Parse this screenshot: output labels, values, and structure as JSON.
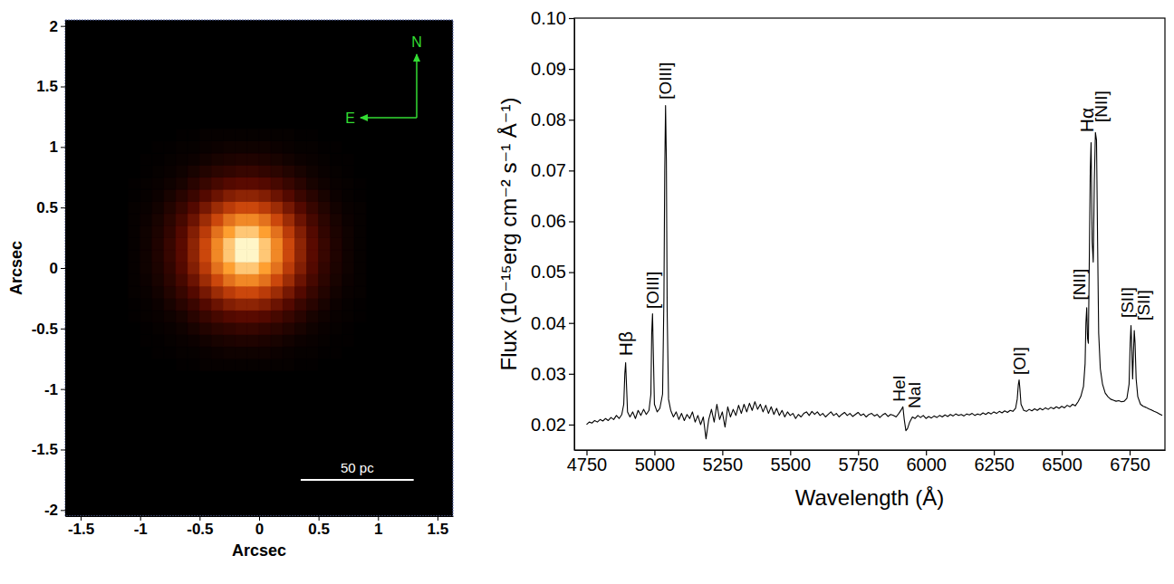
{
  "chart_data": [
    {
      "type": "heatmap",
      "xlabel": "Arcsec",
      "ylabel": "Arcsec",
      "xlim": [
        -1.63,
        1.63
      ],
      "ylim": [
        -2.05,
        2.05
      ],
      "xticks": [
        -1.5,
        -1,
        -0.5,
        0,
        0.5,
        1,
        1.5
      ],
      "yticks": [
        -2,
        -1.5,
        -1,
        -0.5,
        0,
        0.5,
        1,
        1.5,
        2
      ],
      "x": [
        -1.05,
        -0.95,
        -0.85,
        -0.75,
        -0.65,
        -0.55,
        -0.45,
        -0.35,
        -0.25,
        -0.15,
        -0.05,
        0.05,
        0.15,
        0.25,
        0.35,
        0.45,
        0.55,
        0.65,
        0.75,
        0.85
      ],
      "y": [
        -0.8,
        -0.7,
        -0.6,
        -0.5,
        -0.4,
        -0.3,
        -0.2,
        -0.1,
        0,
        0.1,
        0.2,
        0.3,
        0.4,
        0.5,
        0.6,
        0.7,
        0.8,
        0.9,
        1,
        1.1
      ],
      "z": [
        [
          0,
          0,
          0,
          0,
          1,
          1,
          2,
          2,
          2,
          2,
          2,
          2,
          2,
          2,
          1,
          1,
          0,
          0,
          0,
          0
        ],
        [
          0,
          0,
          1,
          1,
          2,
          2,
          3,
          4,
          5,
          5,
          5,
          5,
          4,
          3,
          2,
          2,
          1,
          1,
          0,
          0
        ],
        [
          0,
          1,
          1,
          2,
          3,
          4,
          6,
          8,
          9,
          10,
          10,
          9,
          8,
          6,
          4,
          3,
          2,
          1,
          1,
          0
        ],
        [
          0,
          1,
          2,
          3,
          5,
          8,
          11,
          14,
          16,
          18,
          18,
          16,
          14,
          11,
          8,
          5,
          3,
          2,
          1,
          0
        ],
        [
          1,
          2,
          3,
          5,
          8,
          13,
          18,
          23,
          27,
          29,
          29,
          27,
          23,
          18,
          13,
          8,
          5,
          3,
          2,
          1
        ],
        [
          1,
          2,
          4,
          8,
          13,
          19,
          27,
          34,
          40,
          43,
          43,
          40,
          34,
          27,
          19,
          13,
          8,
          4,
          2,
          1
        ],
        [
          2,
          3,
          6,
          11,
          18,
          27,
          37,
          47,
          55,
          60,
          60,
          55,
          47,
          37,
          27,
          18,
          11,
          6,
          3,
          2
        ],
        [
          2,
          4,
          8,
          14,
          23,
          34,
          47,
          60,
          71,
          77,
          77,
          71,
          60,
          47,
          34,
          23,
          14,
          8,
          4,
          2
        ],
        [
          2,
          5,
          9,
          16,
          27,
          40,
          55,
          71,
          83,
          90,
          90,
          83,
          71,
          55,
          40,
          27,
          16,
          9,
          5,
          2
        ],
        [
          2,
          5,
          10,
          18,
          29,
          43,
          60,
          77,
          90,
          98,
          98,
          90,
          77,
          60,
          43,
          29,
          18,
          10,
          5,
          2
        ],
        [
          2,
          5,
          10,
          18,
          29,
          43,
          60,
          77,
          90,
          98,
          98,
          90,
          77,
          60,
          43,
          29,
          18,
          10,
          5,
          2
        ],
        [
          2,
          5,
          9,
          16,
          27,
          40,
          55,
          71,
          83,
          90,
          90,
          83,
          71,
          55,
          40,
          27,
          16,
          9,
          5,
          2
        ],
        [
          2,
          4,
          8,
          14,
          23,
          34,
          47,
          60,
          71,
          77,
          77,
          71,
          60,
          47,
          34,
          23,
          14,
          8,
          4,
          2
        ],
        [
          2,
          3,
          6,
          11,
          18,
          27,
          37,
          47,
          55,
          60,
          60,
          55,
          47,
          37,
          27,
          18,
          11,
          6,
          3,
          2
        ],
        [
          1,
          2,
          4,
          8,
          13,
          19,
          27,
          34,
          40,
          43,
          43,
          40,
          34,
          27,
          19,
          13,
          8,
          4,
          2,
          1
        ],
        [
          1,
          2,
          3,
          5,
          8,
          13,
          18,
          23,
          27,
          29,
          29,
          27,
          23,
          18,
          13,
          8,
          5,
          3,
          2,
          1
        ],
        [
          0,
          1,
          2,
          3,
          5,
          8,
          11,
          14,
          16,
          18,
          18,
          16,
          14,
          11,
          8,
          5,
          3,
          2,
          1,
          0
        ],
        [
          0,
          1,
          1,
          2,
          3,
          4,
          6,
          8,
          9,
          10,
          10,
          9,
          8,
          6,
          4,
          3,
          2,
          1,
          1,
          0
        ],
        [
          0,
          0,
          1,
          1,
          2,
          2,
          3,
          4,
          5,
          5,
          5,
          5,
          4,
          3,
          2,
          2,
          1,
          1,
          0,
          0
        ],
        [
          0,
          0,
          0,
          0,
          1,
          1,
          2,
          2,
          2,
          2,
          2,
          2,
          2,
          2,
          1,
          1,
          0,
          0,
          0,
          0
        ]
      ],
      "annotations": [
        {
          "text": "N"
        },
        {
          "text": "E"
        }
      ],
      "scale_bar": {
        "text": "50 pc",
        "x": [
          0.35,
          1.3
        ],
        "y": -1.75
      }
    },
    {
      "type": "line",
      "xlabel": "Wavelength (Å)",
      "ylabel": "Flux (10⁻¹⁵erg cm⁻² s⁻¹ Å⁻¹)",
      "xlim": [
        4705,
        6880
      ],
      "ylim": [
        0.015,
        0.1
      ],
      "xticks": [
        4750,
        5000,
        5250,
        5500,
        5750,
        6000,
        6250,
        6500,
        6750
      ],
      "yticks": [
        0.02,
        0.03,
        0.04,
        0.05,
        0.06,
        0.07,
        0.08,
        0.09,
        {
          "value": 0.1,
          "label": "0.10"
        }
      ],
      "color": "#000000",
      "x": [
        4750,
        4760,
        4770,
        4780,
        4790,
        4800,
        4810,
        4820,
        4830,
        4840,
        4850,
        4860,
        4870,
        4880,
        4887,
        4891,
        4894,
        4897,
        4901,
        4910,
        4920,
        4930,
        4940,
        4950,
        4960,
        4970,
        4980,
        4987,
        4990,
        4993,
        4996,
        5000,
        5010,
        5020,
        5030,
        5035,
        5038,
        5041,
        5044,
        5047,
        5052,
        5060,
        5070,
        5080,
        5090,
        5100,
        5110,
        5120,
        5130,
        5140,
        5150,
        5160,
        5170,
        5180,
        5190,
        5200,
        5210,
        5220,
        5230,
        5240,
        5250,
        5260,
        5270,
        5280,
        5290,
        5300,
        5310,
        5320,
        5330,
        5340,
        5350,
        5360,
        5370,
        5380,
        5390,
        5400,
        5410,
        5420,
        5430,
        5440,
        5450,
        5460,
        5470,
        5480,
        5490,
        5500,
        5510,
        5520,
        5530,
        5540,
        5550,
        5560,
        5570,
        5580,
        5590,
        5600,
        5610,
        5620,
        5630,
        5640,
        5650,
        5660,
        5670,
        5680,
        5690,
        5700,
        5710,
        5720,
        5730,
        5740,
        5750,
        5760,
        5770,
        5780,
        5790,
        5800,
        5810,
        5820,
        5830,
        5840,
        5850,
        5860,
        5870,
        5880,
        5890,
        5900,
        5910,
        5915,
        5920,
        5926,
        5932,
        5940,
        5950,
        5960,
        5970,
        5980,
        5990,
        6000,
        6010,
        6020,
        6030,
        6040,
        6050,
        6060,
        6070,
        6080,
        6090,
        6100,
        6110,
        6120,
        6130,
        6140,
        6150,
        6160,
        6170,
        6180,
        6190,
        6200,
        6210,
        6220,
        6230,
        6240,
        6250,
        6260,
        6270,
        6280,
        6290,
        6300,
        6310,
        6320,
        6330,
        6336,
        6340,
        6343,
        6346,
        6350,
        6360,
        6370,
        6380,
        6390,
        6400,
        6410,
        6420,
        6430,
        6440,
        6450,
        6460,
        6470,
        6480,
        6490,
        6500,
        6510,
        6520,
        6530,
        6540,
        6550,
        6560,
        6570,
        6580,
        6586,
        6589,
        6592,
        6595,
        6598,
        6602,
        6605,
        6608,
        6612,
        6616,
        6620,
        6624,
        6628,
        6632,
        6636,
        6642,
        6650,
        6660,
        6670,
        6680,
        6690,
        6700,
        6710,
        6720,
        6730,
        6740,
        6748,
        6752,
        6755,
        6758,
        6761,
        6764,
        6767,
        6770,
        6774,
        6780,
        6790,
        6800,
        6810,
        6820,
        6830,
        6840,
        6850,
        6860,
        6870
      ],
      "values": [
        0.02,
        0.0205,
        0.0203,
        0.0208,
        0.0205,
        0.021,
        0.0207,
        0.0212,
        0.0208,
        0.0214,
        0.021,
        0.0218,
        0.0212,
        0.022,
        0.024,
        0.03,
        0.0322,
        0.028,
        0.0225,
        0.0215,
        0.0225,
        0.0212,
        0.0228,
        0.0218,
        0.023,
        0.022,
        0.0228,
        0.026,
        0.038,
        0.0418,
        0.034,
        0.024,
        0.0225,
        0.0232,
        0.026,
        0.045,
        0.07,
        0.0828,
        0.072,
        0.042,
        0.025,
        0.0228,
        0.0215,
        0.0225,
        0.021,
        0.0222,
        0.0208,
        0.022,
        0.0212,
        0.0225,
        0.0205,
        0.0218,
        0.02,
        0.0215,
        0.0172,
        0.021,
        0.023,
        0.0205,
        0.024,
        0.021,
        0.0225,
        0.0195,
        0.0235,
        0.0215,
        0.023,
        0.0218,
        0.0238,
        0.0222,
        0.024,
        0.0225,
        0.0242,
        0.0228,
        0.0245,
        0.023,
        0.024,
        0.0225,
        0.0238,
        0.0222,
        0.0235,
        0.022,
        0.0232,
        0.0218,
        0.0228,
        0.0215,
        0.0225,
        0.0218,
        0.0222,
        0.0212,
        0.022,
        0.0215,
        0.0222,
        0.0225,
        0.0218,
        0.0226,
        0.022,
        0.0225,
        0.0218,
        0.0222,
        0.0215,
        0.022,
        0.0225,
        0.0218,
        0.0222,
        0.0215,
        0.022,
        0.0224,
        0.0218,
        0.0222,
        0.0216,
        0.022,
        0.0224,
        0.0218,
        0.0221,
        0.0215,
        0.022,
        0.0222,
        0.0217,
        0.022,
        0.0214,
        0.0219,
        0.0222,
        0.0216,
        0.022,
        0.0218,
        0.0215,
        0.0222,
        0.023,
        0.0235,
        0.021,
        0.0188,
        0.0192,
        0.0205,
        0.0215,
        0.0212,
        0.0218,
        0.0214,
        0.0218,
        0.0212,
        0.0216,
        0.0213,
        0.0217,
        0.0214,
        0.0218,
        0.0215,
        0.0219,
        0.0216,
        0.022,
        0.0217,
        0.0221,
        0.0218,
        0.022,
        0.0217,
        0.0221,
        0.0219,
        0.0222,
        0.0218,
        0.0221,
        0.0219,
        0.0223,
        0.022,
        0.0224,
        0.0221,
        0.0225,
        0.0222,
        0.0226,
        0.0223,
        0.0227,
        0.0224,
        0.0228,
        0.0226,
        0.0232,
        0.025,
        0.0278,
        0.0288,
        0.027,
        0.024,
        0.0228,
        0.0226,
        0.023,
        0.0227,
        0.0231,
        0.0228,
        0.0232,
        0.0229,
        0.0233,
        0.023,
        0.0234,
        0.0231,
        0.0235,
        0.0232,
        0.0236,
        0.0233,
        0.0238,
        0.0235,
        0.024,
        0.0237,
        0.0245,
        0.0255,
        0.0275,
        0.032,
        0.04,
        0.043,
        0.037,
        0.036,
        0.055,
        0.07,
        0.0755,
        0.056,
        0.052,
        0.068,
        0.0775,
        0.076,
        0.056,
        0.038,
        0.031,
        0.028,
        0.0262,
        0.0255,
        0.025,
        0.0248,
        0.0246,
        0.0247,
        0.0245,
        0.0246,
        0.0252,
        0.028,
        0.036,
        0.0395,
        0.035,
        0.029,
        0.034,
        0.0385,
        0.036,
        0.029,
        0.0255,
        0.024,
        0.0236,
        0.0234,
        0.0231,
        0.0229,
        0.0226,
        0.0224,
        0.0221,
        0.0218
      ],
      "annotations": [
        {
          "text": "Hβ",
          "x": 4894,
          "y": 0.0335
        },
        {
          "text": "[OIII]",
          "x": 4993,
          "y": 0.0428
        },
        {
          "text": "[OIII]",
          "x": 5041,
          "y": 0.084
        },
        {
          "text": "HeI",
          "x": 5900,
          "y": 0.0245
        },
        {
          "text": "NaI",
          "x": 5958,
          "y": 0.0232
        },
        {
          "text": "[OI]",
          "x": 6343,
          "y": 0.0298
        },
        {
          "text": "[NII]",
          "x": 6565,
          "y": 0.0445
        },
        {
          "text": "Hα",
          "x": 6590,
          "y": 0.0775
        },
        {
          "text": "[NII]",
          "x": 6646,
          "y": 0.0795
        },
        {
          "text": "[SII]",
          "x": 6740,
          "y": 0.041
        },
        {
          "text": "[SII]",
          "x": 6800,
          "y": 0.0405
        }
      ]
    }
  ]
}
